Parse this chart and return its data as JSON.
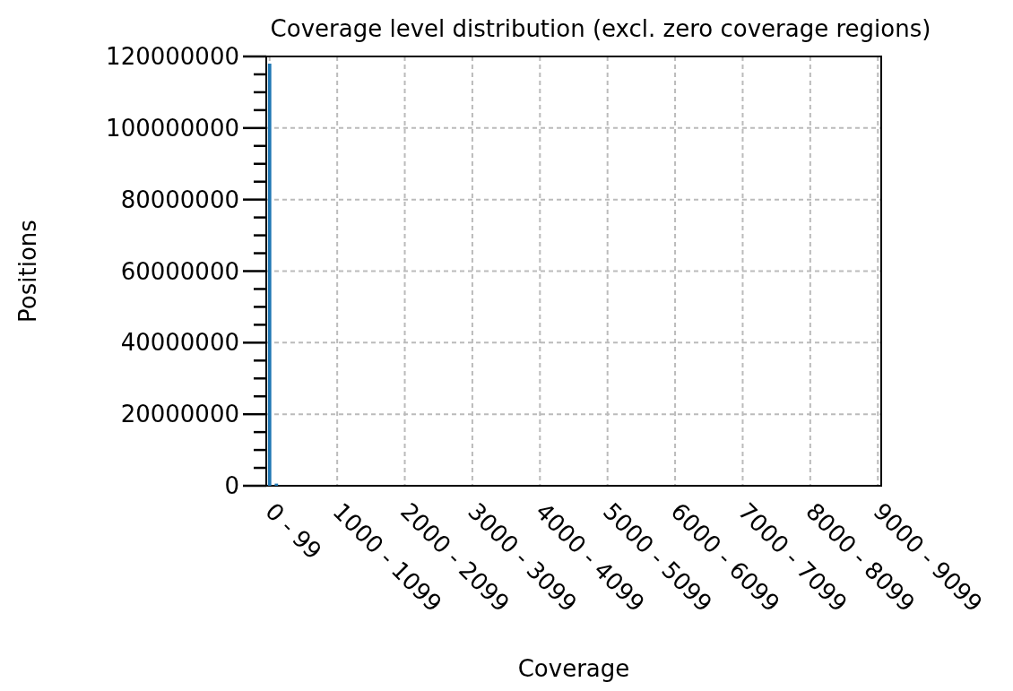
{
  "chart_data": {
    "type": "bar",
    "title": "Coverage level distribution (excl. zero coverage regions)",
    "xlabel": "Coverage",
    "ylabel": "Positions",
    "categories": [
      "0 - 99",
      null,
      null,
      null,
      null,
      null,
      null,
      null,
      null,
      null,
      "1000 - 1099",
      null,
      null,
      null,
      null,
      null,
      null,
      null,
      null,
      null,
      "2000 - 2099",
      null,
      null,
      null,
      null,
      null,
      null,
      null,
      null,
      null,
      "3000 - 3099",
      null,
      null,
      null,
      null,
      null,
      null,
      null,
      null,
      null,
      "4000 - 4099",
      null,
      null,
      null,
      null,
      null,
      null,
      null,
      null,
      null,
      "5000 - 5099",
      null,
      null,
      null,
      null,
      null,
      null,
      null,
      null,
      null,
      "6000 - 6099",
      null,
      null,
      null,
      null,
      null,
      null,
      null,
      null,
      null,
      "7000 - 7099",
      null,
      null,
      null,
      null,
      null,
      null,
      null,
      null,
      null,
      "8000 - 8099",
      null,
      null,
      null,
      null,
      null,
      null,
      null,
      null,
      null,
      "9000 - 9099"
    ],
    "values": [
      118000000,
      600000,
      0,
      0,
      0,
      0,
      0,
      0,
      0,
      0,
      0,
      0,
      0,
      0,
      0,
      0,
      0,
      0,
      0,
      0,
      0,
      0,
      0,
      0,
      0,
      0,
      0,
      0,
      0,
      0,
      0,
      0,
      0,
      0,
      0,
      0,
      0,
      0,
      0,
      0,
      0,
      0,
      0,
      0,
      0,
      0,
      0,
      0,
      0,
      0,
      0,
      0,
      0,
      0,
      0,
      0,
      0,
      0,
      0,
      0,
      0,
      0,
      0,
      0,
      0,
      0,
      0,
      0,
      0,
      0,
      0,
      0,
      0,
      0,
      0,
      0,
      0,
      0,
      0,
      0,
      0,
      0,
      0,
      0,
      0,
      0,
      0,
      0,
      0,
      0,
      0
    ],
    "color": "#1f77b4",
    "ylim": [
      0,
      120000000
    ],
    "yticks": [
      0,
      {
        "value": 5000000,
        "label": null
      },
      {
        "value": 10000000,
        "label": null
      },
      {
        "value": 15000000,
        "label": null
      },
      20000000,
      {
        "value": 25000000,
        "label": null
      },
      {
        "value": 30000000,
        "label": null
      },
      {
        "value": 35000000,
        "label": null
      },
      40000000,
      {
        "value": 45000000,
        "label": null
      },
      {
        "value": 50000000,
        "label": null
      },
      {
        "value": 55000000,
        "label": null
      },
      60000000,
      {
        "value": 65000000,
        "label": null
      },
      {
        "value": 70000000,
        "label": null
      },
      {
        "value": 75000000,
        "label": null
      },
      80000000,
      {
        "value": 85000000,
        "label": null
      },
      {
        "value": 90000000,
        "label": null
      },
      {
        "value": 95000000,
        "label": null
      },
      100000000,
      {
        "value": 105000000,
        "label": null
      },
      {
        "value": 110000000,
        "label": null
      },
      {
        "value": 115000000,
        "label": null
      },
      120000000
    ],
    "grid": true
  }
}
